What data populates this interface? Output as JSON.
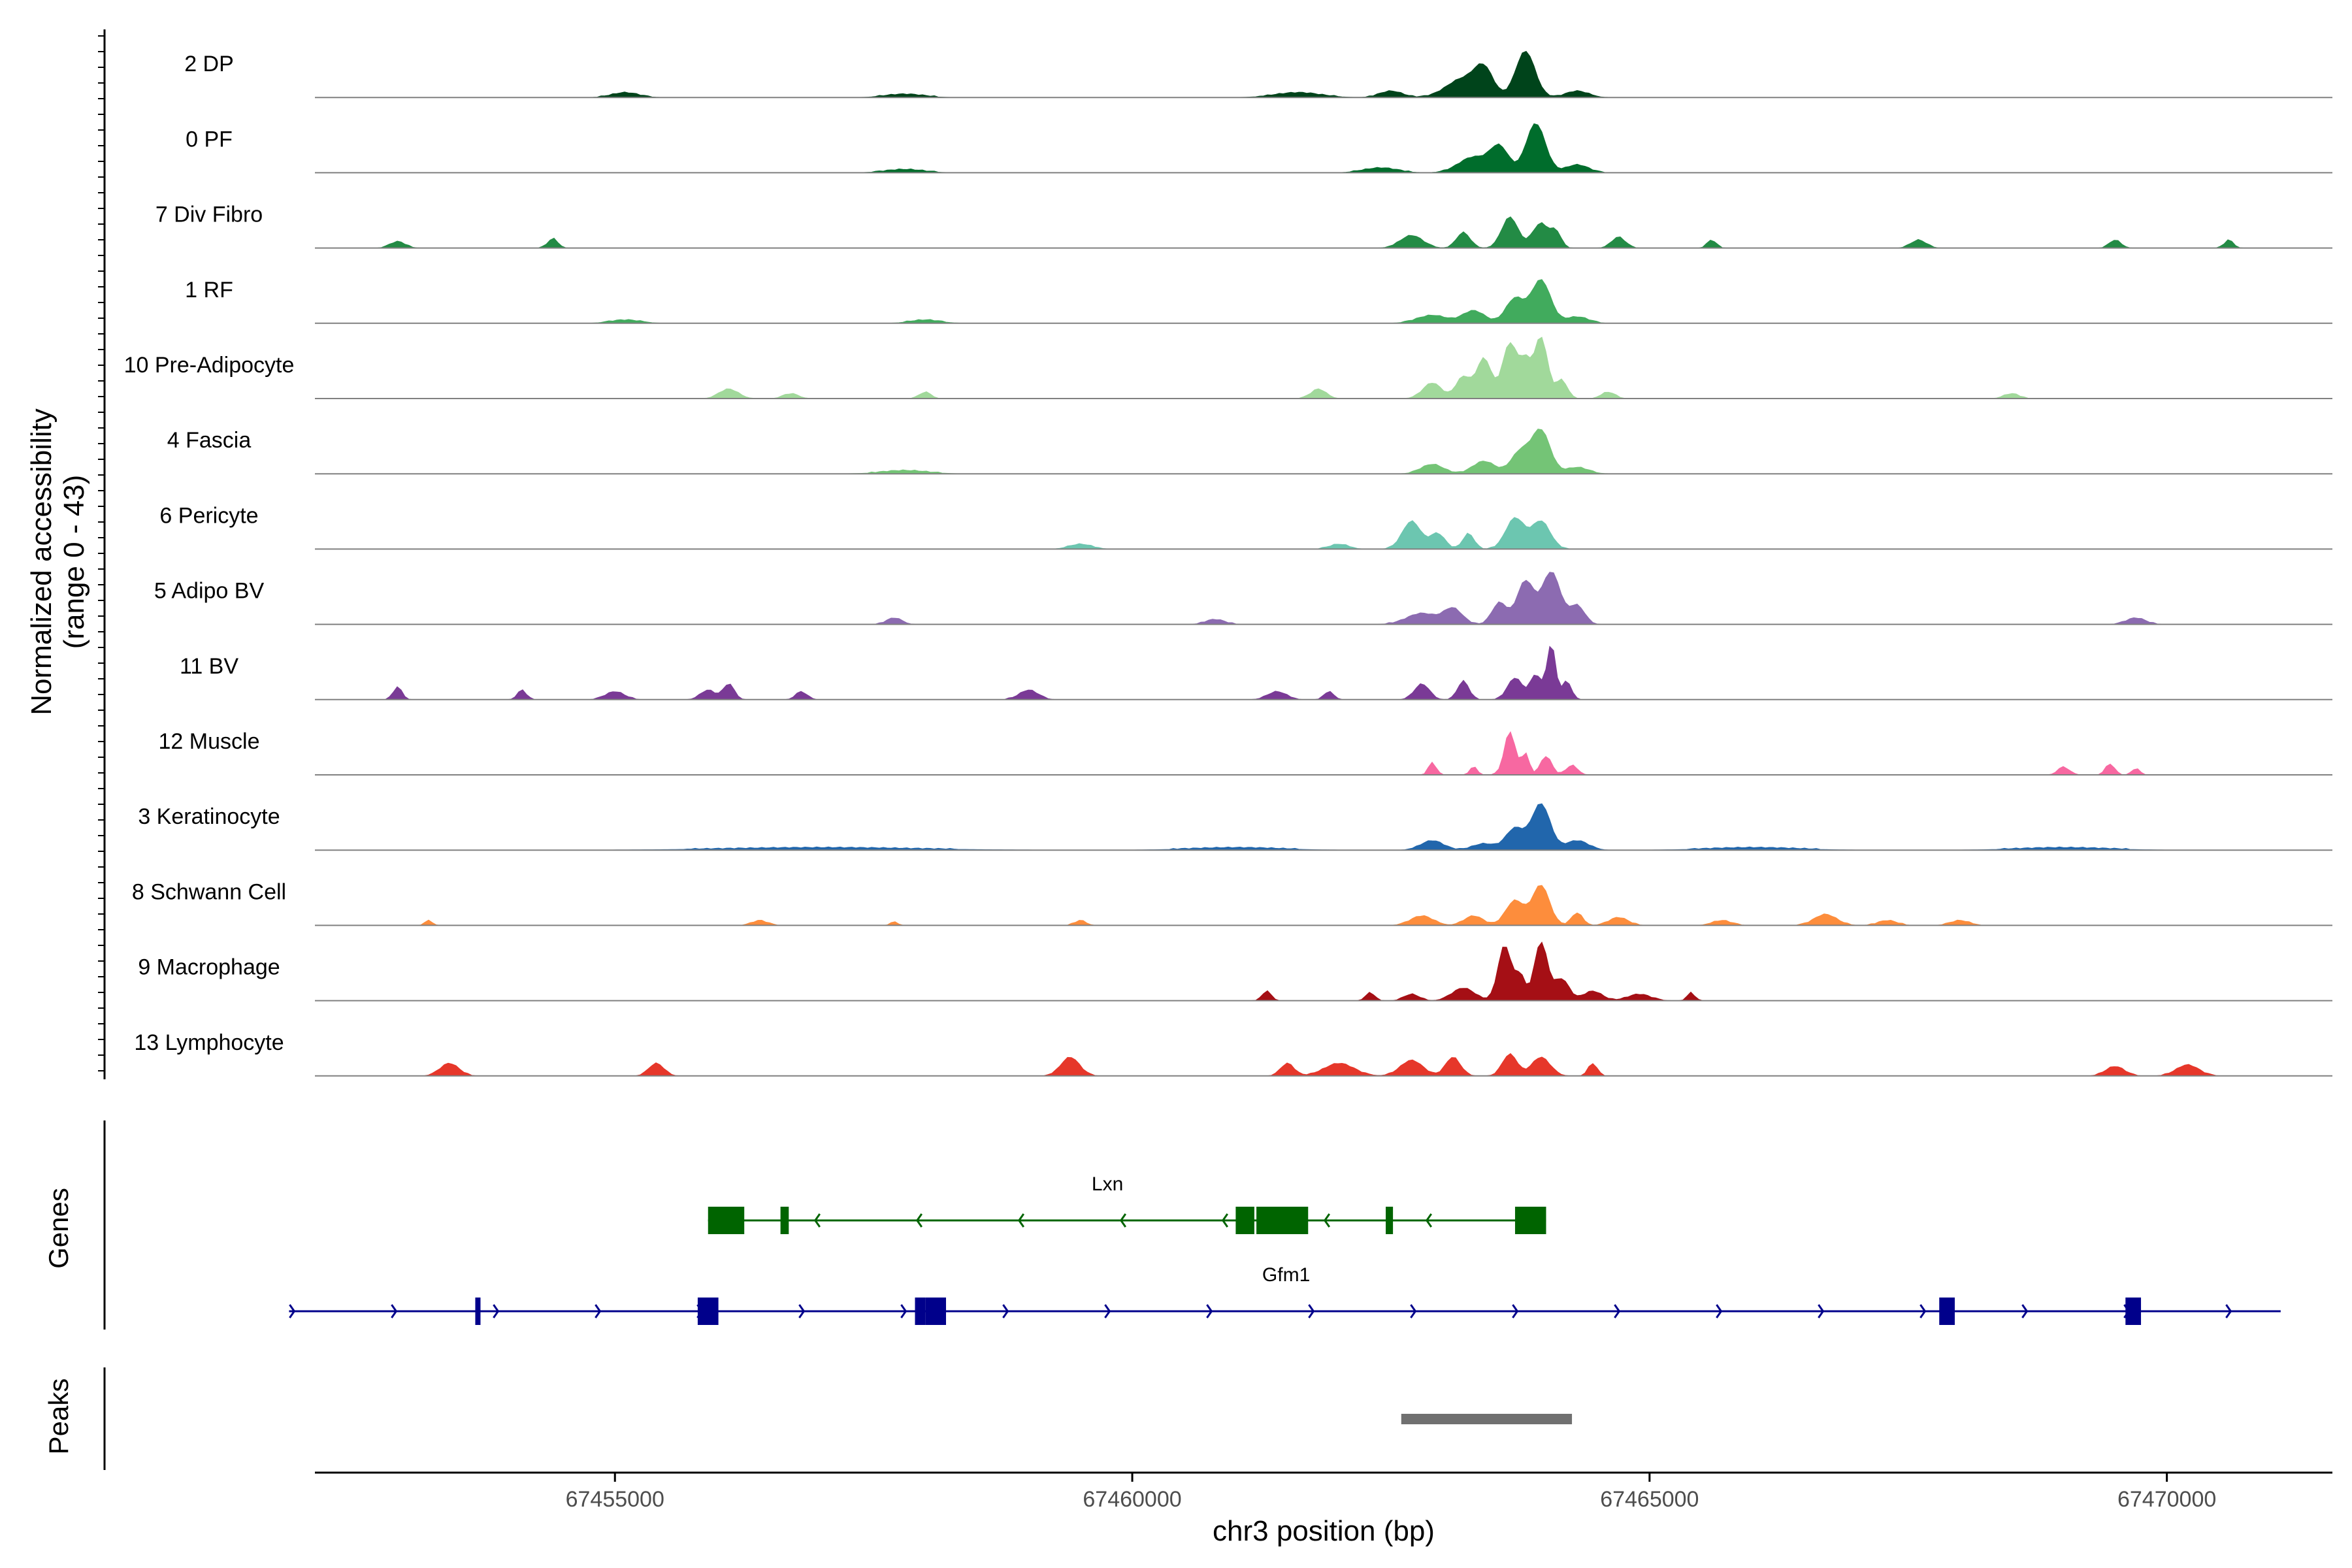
{
  "chart_data": {
    "type": "area",
    "chromosome": "chr3",
    "xlabel": "chr3 position (bp)",
    "ylabel_line1": "Normalized accessibility",
    "ylabel_line2": "(range 0 - 43)",
    "xlim": [
      67452100,
      67471600
    ],
    "x_ticks": [
      {
        "value": 67455000,
        "label": "67455000"
      },
      {
        "value": 67460000,
        "label": "67460000"
      },
      {
        "value": 67465000,
        "label": "67465000"
      },
      {
        "value": 67470000,
        "label": "67470000"
      }
    ],
    "ylim": [
      0,
      43
    ],
    "series": [
      {
        "name": "2 DP",
        "color": "#00441b",
        "peaks": [
          [
            67455100,
            350,
            3
          ],
          [
            67457800,
            500,
            2
          ],
          [
            67461600,
            600,
            3
          ],
          [
            67462500,
            300,
            4
          ],
          [
            67463200,
            450,
            12
          ],
          [
            67463800,
            260,
            30
          ],
          [
            67463400,
            250,
            16
          ],
          [
            67464300,
            300,
            4
          ]
        ]
      },
      {
        "name": "0 PF",
        "color": "#006d2c",
        "peaks": [
          [
            67457800,
            500,
            2
          ],
          [
            67462400,
            450,
            3
          ],
          [
            67463300,
            400,
            10
          ],
          [
            67463550,
            250,
            16
          ],
          [
            67463900,
            260,
            32
          ],
          [
            67464300,
            300,
            5
          ]
        ]
      },
      {
        "name": "7 Div Fibro",
        "color": "#238b45",
        "peaks": [
          [
            67452900,
            200,
            4
          ],
          [
            67454400,
            130,
            6
          ],
          [
            67462700,
            300,
            8
          ],
          [
            67463200,
            180,
            10
          ],
          [
            67463650,
            220,
            20
          ],
          [
            67463950,
            230,
            16
          ],
          [
            67464100,
            130,
            9
          ],
          [
            67464700,
            180,
            7
          ],
          [
            67465600,
            120,
            5
          ],
          [
            67467600,
            200,
            5
          ],
          [
            67469500,
            150,
            5
          ],
          [
            67470600,
            120,
            5
          ]
        ]
      },
      {
        "name": "1 RF",
        "color": "#41ab5d",
        "peaks": [
          [
            67455100,
            400,
            2
          ],
          [
            67458000,
            400,
            2
          ],
          [
            67462900,
            400,
            5
          ],
          [
            67463300,
            300,
            8
          ],
          [
            67463700,
            250,
            16
          ],
          [
            67463950,
            260,
            28
          ],
          [
            67464300,
            300,
            4
          ]
        ]
      },
      {
        "name": "10 Pre-Adipocyte",
        "color": "#a1d99b",
        "peaks": [
          [
            67456100,
            250,
            6
          ],
          [
            67456700,
            200,
            3
          ],
          [
            67458000,
            150,
            4
          ],
          [
            67461800,
            200,
            6
          ],
          [
            67462900,
            250,
            10
          ],
          [
            67463200,
            200,
            14
          ],
          [
            67463400,
            200,
            26
          ],
          [
            67463650,
            200,
            36
          ],
          [
            67463800,
            150,
            22
          ],
          [
            67463950,
            180,
            40
          ],
          [
            67464150,
            150,
            12
          ],
          [
            67464600,
            180,
            4
          ],
          [
            67468500,
            200,
            3
          ]
        ]
      },
      {
        "name": "4 Fascia",
        "color": "#74c476",
        "peaks": [
          [
            67457800,
            600,
            2
          ],
          [
            67462900,
            300,
            6
          ],
          [
            67463400,
            300,
            8
          ],
          [
            67463750,
            250,
            14
          ],
          [
            67463950,
            250,
            28
          ],
          [
            67464300,
            300,
            4
          ]
        ]
      },
      {
        "name": "6 Pericyte",
        "color": "#6cc6b0",
        "peaks": [
          [
            67459500,
            300,
            3
          ],
          [
            67462000,
            250,
            3
          ],
          [
            67462700,
            250,
            18
          ],
          [
            67462950,
            200,
            10
          ],
          [
            67463250,
            150,
            10
          ],
          [
            67463700,
            250,
            20
          ],
          [
            67463950,
            250,
            18
          ]
        ]
      },
      {
        "name": "5 Adipo BV",
        "color": "#8c6bb1",
        "peaks": [
          [
            67457700,
            200,
            4
          ],
          [
            67460800,
            250,
            3
          ],
          [
            67462800,
            400,
            7
          ],
          [
            67463100,
            250,
            10
          ],
          [
            67463550,
            200,
            14
          ],
          [
            67463800,
            230,
            28
          ],
          [
            67464050,
            250,
            34
          ],
          [
            67464300,
            200,
            12
          ],
          [
            67469700,
            250,
            4
          ]
        ]
      },
      {
        "name": "11 BV",
        "color": "#7a3a96",
        "peaks": [
          [
            67452900,
            120,
            8
          ],
          [
            67454100,
            120,
            6
          ],
          [
            67455000,
            250,
            5
          ],
          [
            67455900,
            200,
            6
          ],
          [
            67456100,
            150,
            10
          ],
          [
            67456800,
            150,
            5
          ],
          [
            67459000,
            250,
            6
          ],
          [
            67461400,
            250,
            5
          ],
          [
            67461900,
            130,
            5
          ],
          [
            67462800,
            200,
            10
          ],
          [
            67463200,
            150,
            12
          ],
          [
            67463700,
            200,
            14
          ],
          [
            67463900,
            150,
            16
          ],
          [
            67464050,
            120,
            36
          ],
          [
            67464200,
            120,
            12
          ]
        ]
      },
      {
        "name": "12 Muscle",
        "color": "#f768a1",
        "peaks": [
          [
            67462900,
            100,
            8
          ],
          [
            67463300,
            100,
            5
          ],
          [
            67463650,
            150,
            28
          ],
          [
            67463800,
            100,
            14
          ],
          [
            67464000,
            150,
            12
          ],
          [
            67464250,
            150,
            6
          ],
          [
            67469000,
            150,
            5
          ],
          [
            67469450,
            120,
            7
          ],
          [
            67469700,
            100,
            4
          ]
        ]
      },
      {
        "name": "3 Keratinocyte",
        "color": "#2166ac",
        "peaks": [
          [
            67457000,
            2500,
            1.5
          ],
          [
            67461000,
            1200,
            1.5
          ],
          [
            67462900,
            300,
            6
          ],
          [
            67463400,
            300,
            4
          ],
          [
            67463700,
            250,
            14
          ],
          [
            67463950,
            250,
            30
          ],
          [
            67464300,
            300,
            6
          ],
          [
            67466000,
            1200,
            1.5
          ],
          [
            67469000,
            1200,
            1.5
          ]
        ]
      },
      {
        "name": "8 Schwann Cell",
        "color": "#fd8d3c",
        "peaks": [
          [
            67453200,
            100,
            3
          ],
          [
            67456400,
            200,
            3
          ],
          [
            67457700,
            100,
            2
          ],
          [
            67459500,
            150,
            3
          ],
          [
            67462800,
            300,
            6
          ],
          [
            67463300,
            250,
            6
          ],
          [
            67463700,
            250,
            16
          ],
          [
            67463950,
            230,
            26
          ],
          [
            67464300,
            150,
            8
          ],
          [
            67464700,
            250,
            5
          ],
          [
            67465700,
            250,
            3
          ],
          [
            67466700,
            300,
            7
          ],
          [
            67467300,
            250,
            3
          ],
          [
            67468000,
            250,
            3
          ]
        ]
      },
      {
        "name": "9 Macrophage",
        "color": "#a50f15",
        "peaks": [
          [
            67461300,
            120,
            6
          ],
          [
            67462300,
            120,
            5
          ],
          [
            67462700,
            200,
            4
          ],
          [
            67463200,
            300,
            8
          ],
          [
            67463600,
            180,
            36
          ],
          [
            67463750,
            130,
            16
          ],
          [
            67463950,
            180,
            38
          ],
          [
            67464150,
            200,
            14
          ],
          [
            67464450,
            250,
            6
          ],
          [
            67464900,
            300,
            4
          ],
          [
            67465400,
            100,
            5
          ]
        ]
      },
      {
        "name": "13 Lymphocyte",
        "color": "#e6372a",
        "peaks": [
          [
            67453400,
            250,
            8
          ],
          [
            67455400,
            200,
            8
          ],
          [
            67459400,
            250,
            12
          ],
          [
            67461500,
            180,
            8
          ],
          [
            67462000,
            400,
            8
          ],
          [
            67462700,
            300,
            10
          ],
          [
            67463100,
            200,
            12
          ],
          [
            67463650,
            200,
            14
          ],
          [
            67463950,
            250,
            12
          ],
          [
            67464450,
            120,
            8
          ],
          [
            67469500,
            250,
            6
          ],
          [
            67470200,
            300,
            7
          ]
        ]
      }
    ],
    "genes": [
      {
        "name": "Lxn",
        "color": "#006400",
        "start": 67455900,
        "end": 67464000,
        "strand": "-",
        "row": 0,
        "exons": [
          [
            67455900,
            67456250
          ],
          [
            67456600,
            67456680
          ],
          [
            67461000,
            67461180
          ],
          [
            67461200,
            67461700
          ],
          [
            67462450,
            67462520
          ],
          [
            67463700,
            67464000
          ]
        ]
      },
      {
        "name": "Gfm1",
        "color": "#00008b",
        "start": 67451850,
        "end": 67471100,
        "strand": "+",
        "row": 1,
        "exons": [
          [
            67453650,
            67453700
          ],
          [
            67455800,
            67456000
          ],
          [
            67457900,
            67458000
          ],
          [
            67458000,
            67458200
          ],
          [
            67467800,
            67467950
          ],
          [
            67469600,
            67469750
          ]
        ]
      }
    ],
    "peaks_track": [
      [
        67462600,
        67464250
      ]
    ],
    "panel_titles": {
      "genes": "Genes",
      "peaks": "Peaks"
    }
  }
}
